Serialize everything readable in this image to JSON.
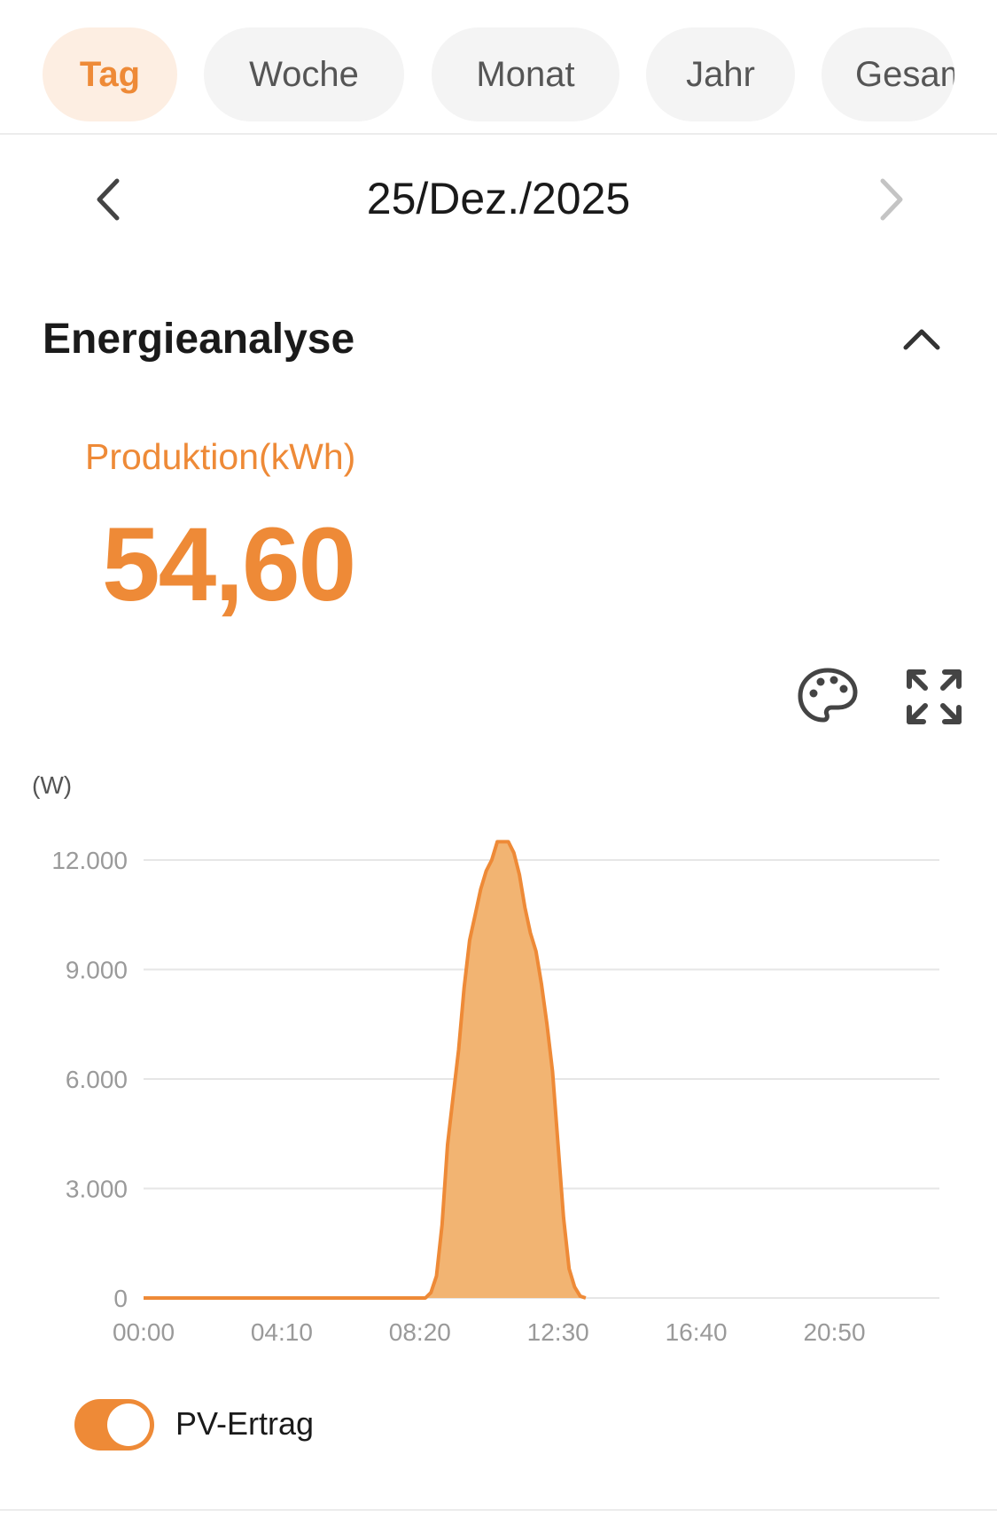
{
  "tabs": [
    {
      "label": "Tag",
      "active": true
    },
    {
      "label": "Woche",
      "active": false
    },
    {
      "label": "Monat",
      "active": false
    },
    {
      "label": "Jahr",
      "active": false
    },
    {
      "label": "Gesamt",
      "active": false
    }
  ],
  "date": {
    "label": "25/Dez./2025",
    "prev_icon": "chevron-left-icon",
    "next_icon": "chevron-right-icon"
  },
  "section": {
    "title": "Energieanalyse",
    "collapse_icon": "chevron-up-icon"
  },
  "production": {
    "label": "Produktion(kWh)",
    "value": "54,60"
  },
  "tools": {
    "theme_icon": "palette-icon",
    "fullscreen_icon": "expand-icon"
  },
  "colors": {
    "accent": "#ee8a37",
    "area_fill": "#f2b472",
    "active_tab_bg": "#fdeee2"
  },
  "chart_data": {
    "type": "area",
    "ylabel": "(W)",
    "ylim": [
      0,
      12000
    ],
    "y_ticks": [
      "0",
      "3.000",
      "6.000",
      "9.000",
      "12.000"
    ],
    "y_tick_values": [
      0,
      3000,
      6000,
      9000,
      12000
    ],
    "x_ticks": [
      "00:00",
      "04:10",
      "08:20",
      "12:30",
      "16:40",
      "20:50"
    ],
    "x_range_minutes": [
      0,
      1440
    ],
    "grid": true,
    "series": [
      {
        "name": "PV-Ertrag",
        "points": [
          [
            "00:00",
            0
          ],
          [
            "08:30",
            0
          ],
          [
            "08:40",
            150
          ],
          [
            "08:50",
            600
          ],
          [
            "09:00",
            2000
          ],
          [
            "09:10",
            4200
          ],
          [
            "09:20",
            5500
          ],
          [
            "09:30",
            6800
          ],
          [
            "09:40",
            8500
          ],
          [
            "09:50",
            9800
          ],
          [
            "10:00",
            10500
          ],
          [
            "10:10",
            11200
          ],
          [
            "10:20",
            11700
          ],
          [
            "10:30",
            12000
          ],
          [
            "10:40",
            12500
          ],
          [
            "10:50",
            12500
          ],
          [
            "11:00",
            12500
          ],
          [
            "11:10",
            12200
          ],
          [
            "11:20",
            11600
          ],
          [
            "11:30",
            10700
          ],
          [
            "11:40",
            10000
          ],
          [
            "11:50",
            9500
          ],
          [
            "12:00",
            8600
          ],
          [
            "12:10",
            7500
          ],
          [
            "12:20",
            6200
          ],
          [
            "12:30",
            4200
          ],
          [
            "12:40",
            2200
          ],
          [
            "12:50",
            800
          ],
          [
            "13:00",
            300
          ],
          [
            "13:10",
            50
          ],
          [
            "13:20",
            0
          ]
        ]
      }
    ]
  },
  "legend": {
    "items": [
      {
        "label": "PV-Ertrag",
        "enabled": true
      }
    ]
  }
}
